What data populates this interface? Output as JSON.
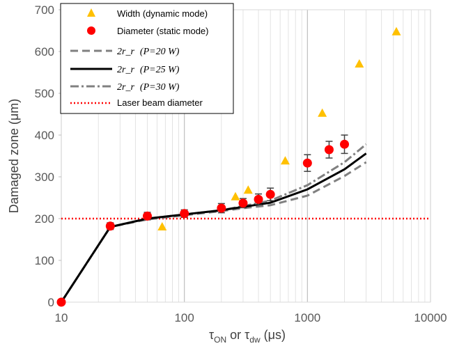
{
  "chart_data": {
    "type": "scatter",
    "x_scale": "log",
    "xlim": [
      10,
      10000
    ],
    "ylim": [
      0,
      700
    ],
    "x_ticks": [
      10,
      100,
      1000,
      10000
    ],
    "y_ticks": [
      0,
      100,
      200,
      300,
      400,
      500,
      600,
      700
    ],
    "xlabel": {
      "tau": "τ",
      "sub_on": "ON",
      "or": " or τ",
      "sub_dw": "dw",
      "unit": " (μs)"
    },
    "ylabel": "Damaged zone (μm)",
    "grid": "vertical-major-and-minor",
    "legend_position": "top-left",
    "colors": {
      "width": "#FFC000",
      "diameter": "#FF0000",
      "line20": "#808080",
      "line25": "#000000",
      "line30": "#808080",
      "laser": "#FF0000"
    },
    "series": [
      {
        "name": "Width (dynamic mode)",
        "kind": "triangle",
        "x": [
          66,
          260,
          330,
          660,
          1320,
          2640,
          5280
        ],
        "y": [
          180,
          252,
          268,
          338,
          452,
          570,
          647
        ]
      },
      {
        "name": "Diameter (static mode)",
        "kind": "circle",
        "x": [
          10,
          25,
          50,
          100,
          200,
          300,
          400,
          500,
          1000,
          1500,
          2000
        ],
        "y": [
          0,
          182,
          206,
          212,
          225,
          237,
          246,
          258,
          333,
          365,
          378
        ],
        "err": [
          0,
          8,
          9,
          9,
          11,
          11,
          13,
          15,
          20,
          20,
          22
        ]
      },
      {
        "name_prefix": "2r_r",
        "name_param": "(P=20 W)",
        "kind": "dashed",
        "x": [
          10,
          25,
          50,
          100,
          200,
          300,
          500,
          1000,
          2000,
          3000
        ],
        "y": [
          0,
          180,
          198,
          208,
          218,
          225,
          232,
          255,
          302,
          335
        ]
      },
      {
        "name_prefix": "2r_r",
        "name_param": "(P=25 W)",
        "kind": "solid",
        "x": [
          10,
          25,
          50,
          100,
          200,
          300,
          500,
          1000,
          2000,
          3000
        ],
        "y": [
          0,
          180,
          200,
          210,
          220,
          228,
          238,
          270,
          318,
          356
        ]
      },
      {
        "name_prefix": "2r_r",
        "name_param": "(P=30 W)",
        "kind": "dashdot",
        "x": [
          10,
          25,
          50,
          100,
          200,
          300,
          500,
          1000,
          2000,
          3000
        ],
        "y": [
          0,
          180,
          200,
          210,
          220,
          230,
          243,
          280,
          335,
          378
        ]
      },
      {
        "name": "Laser beam diameter",
        "kind": "dotted",
        "x": [
          10,
          10000
        ],
        "y": [
          200,
          200
        ]
      }
    ]
  }
}
